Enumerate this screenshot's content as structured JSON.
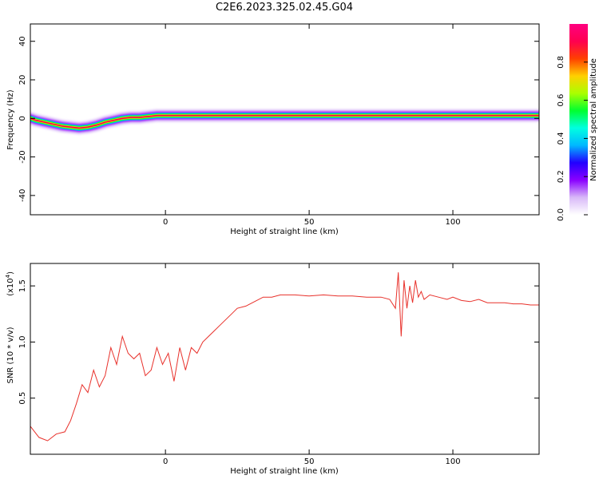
{
  "title": "C2E6.2023.325.02.45.G04",
  "chart_data": [
    {
      "type": "heatmap",
      "xlabel": "Height of straight line (km)",
      "ylabel": "Frequency (Hz)",
      "xlim": [
        -47,
        130
      ],
      "ylim": [
        -50,
        49
      ],
      "xticks": [
        "0",
        "50",
        "100"
      ],
      "yticks": [
        "-40",
        "-20",
        "0",
        "20",
        "40"
      ],
      "colorbar": {
        "label": "Normalized spectral amplitude",
        "range": [
          0.0,
          1.0
        ],
        "ticks": [
          "0.0",
          "0.2",
          "0.4",
          "0.6",
          "0.8"
        ],
        "colors": [
          "#ffffff",
          "#d8b8f8",
          "#8a00ff",
          "#2200ff",
          "#00b8ff",
          "#00ffe0",
          "#00ff30",
          "#aaff00",
          "#ffd000",
          "#ff4000",
          "#ff0050",
          "#ff0080"
        ]
      },
      "ridge": [
        {
          "x": -47,
          "y": 0.0
        },
        {
          "x": -45,
          "y": -1.0
        },
        {
          "x": -42,
          "y": -2.0
        },
        {
          "x": -39,
          "y": -3.0
        },
        {
          "x": -36,
          "y": -4.0
        },
        {
          "x": -33,
          "y": -4.5
        },
        {
          "x": -30,
          "y": -5.0
        },
        {
          "x": -27,
          "y": -4.5
        },
        {
          "x": -24,
          "y": -3.5
        },
        {
          "x": -21,
          "y": -2.0
        },
        {
          "x": -18,
          "y": -1.0
        },
        {
          "x": -15,
          "y": 0.0
        },
        {
          "x": -12,
          "y": 0.5
        },
        {
          "x": -9,
          "y": 0.5
        },
        {
          "x": -6,
          "y": 1.0
        },
        {
          "x": -3,
          "y": 1.5
        },
        {
          "x": 0,
          "y": 1.5
        },
        {
          "x": 10,
          "y": 1.5
        },
        {
          "x": 20,
          "y": 1.5
        },
        {
          "x": 40,
          "y": 1.5
        },
        {
          "x": 60,
          "y": 1.5
        },
        {
          "x": 80,
          "y": 1.5
        },
        {
          "x": 100,
          "y": 1.5
        },
        {
          "x": 130,
          "y": 1.5
        }
      ]
    },
    {
      "type": "line",
      "xlabel": "Height of straight line (km)",
      "ylabel": "SNR (10 * v/v)",
      "y_multiplier": "(x10",
      "y_multiplier_exp": "4",
      "y_multiplier_close": ")",
      "xlim": [
        -47,
        130
      ],
      "ylim": [
        0.0,
        1.7
      ],
      "xticks": [
        "0",
        "50",
        "100"
      ],
      "yticks": [
        "0.5",
        "1.0",
        "1.5"
      ],
      "color": "#e8302a",
      "series": [
        {
          "x": [
            -47,
            -44,
            -41,
            -38,
            -35,
            -33,
            -31,
            -29,
            -27,
            -25,
            -23,
            -21,
            -19,
            -17,
            -15,
            -13,
            -11,
            -9,
            -7,
            -5,
            -3,
            -1,
            1,
            3,
            5,
            7,
            9,
            11,
            13,
            15,
            17,
            19,
            21,
            23,
            25,
            28,
            31,
            34,
            37,
            40,
            45,
            50,
            55,
            60,
            65,
            70,
            75,
            78,
            80,
            81,
            82,
            83,
            84,
            85,
            86,
            87,
            88,
            89,
            90,
            92,
            95,
            98,
            100,
            103,
            106,
            109,
            112,
            115,
            118,
            121,
            124,
            127,
            130
          ],
          "values": [
            0.25,
            0.15,
            0.12,
            0.18,
            0.2,
            0.3,
            0.45,
            0.62,
            0.55,
            0.75,
            0.6,
            0.7,
            0.95,
            0.8,
            1.05,
            0.9,
            0.85,
            0.9,
            0.7,
            0.75,
            0.95,
            0.8,
            0.9,
            0.65,
            0.95,
            0.75,
            0.95,
            0.9,
            1.0,
            1.05,
            1.1,
            1.15,
            1.2,
            1.25,
            1.3,
            1.32,
            1.36,
            1.4,
            1.4,
            1.42,
            1.42,
            1.41,
            1.42,
            1.41,
            1.41,
            1.4,
            1.4,
            1.38,
            1.3,
            1.62,
            1.05,
            1.55,
            1.3,
            1.5,
            1.35,
            1.55,
            1.4,
            1.45,
            1.38,
            1.42,
            1.4,
            1.38,
            1.4,
            1.37,
            1.36,
            1.38,
            1.35,
            1.35,
            1.35,
            1.34,
            1.34,
            1.33,
            1.33
          ]
        }
      ]
    }
  ]
}
